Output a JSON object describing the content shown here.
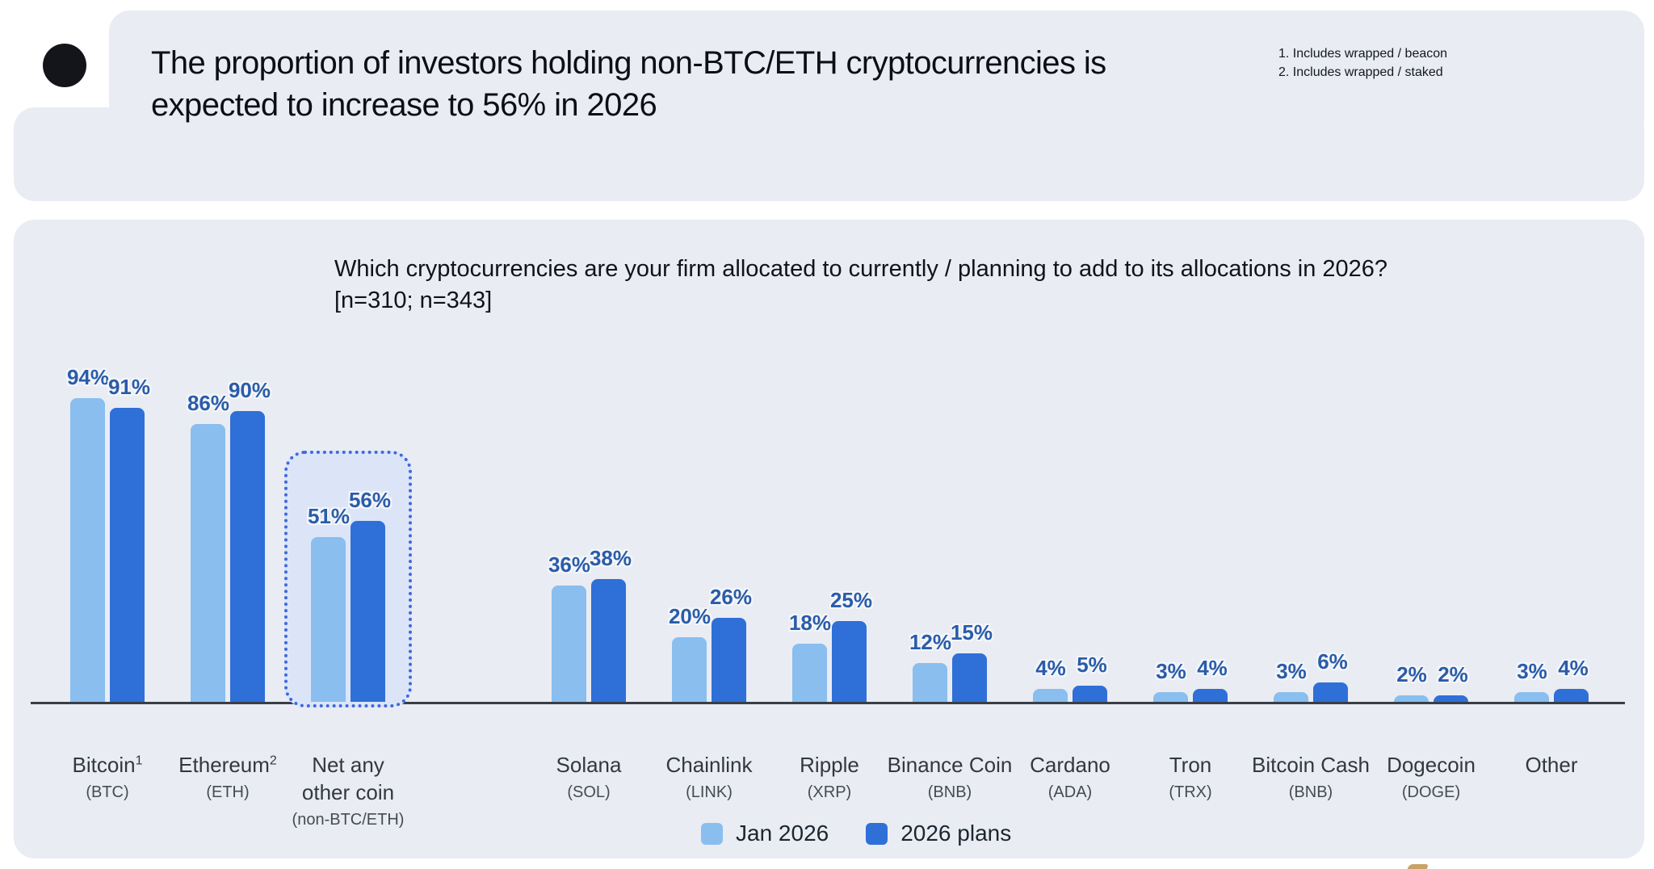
{
  "header": {
    "title_lines": [
      "The proportion of investors holding non-BTC/ETH cryptocurrencies is",
      "expected to increase to 56% in 2026"
    ],
    "footnotes": [
      "1. Includes wrapped / beacon",
      "2. Includes wrapped / staked"
    ]
  },
  "chart_data": {
    "type": "bar",
    "question_lines": [
      "Which cryptocurrencies are your firm allocated to currently / planning to add to its allocations in 2026?",
      "[n=310; n=343]"
    ],
    "unit": "%",
    "categories": [
      {
        "name_lines": [
          "Bitcoin"
        ],
        "sup": "1",
        "ticker": "(BTC)"
      },
      {
        "name_lines": [
          "Ethereum"
        ],
        "sup": "2",
        "ticker": "(ETH)"
      },
      {
        "name_lines": [
          "Net any",
          "other coin"
        ],
        "ticker": "(non-BTC/ETH)"
      },
      {
        "name_lines": [
          "Solana"
        ],
        "ticker": "(SOL)"
      },
      {
        "name_lines": [
          "Chainlink"
        ],
        "ticker": "(LINK)"
      },
      {
        "name_lines": [
          "Ripple"
        ],
        "ticker": "(XRP)"
      },
      {
        "name_lines": [
          "Binance Coin"
        ],
        "ticker": "(BNB)"
      },
      {
        "name_lines": [
          "Cardano"
        ],
        "ticker": "(ADA)"
      },
      {
        "name_lines": [
          "Tron"
        ],
        "ticker": "(TRX)"
      },
      {
        "name_lines": [
          "Bitcoin Cash"
        ],
        "ticker": "(BNB)"
      },
      {
        "name_lines": [
          "Dogecoin"
        ],
        "ticker": "(DOGE)"
      },
      {
        "name_lines": [
          "Other"
        ]
      }
    ],
    "series": [
      {
        "name": "Jan 2026",
        "color": "#89BEEF",
        "values": [
          94,
          86,
          51,
          36,
          20,
          18,
          12,
          4,
          3,
          3,
          2,
          3
        ]
      },
      {
        "name": "2026 plans",
        "color": "#2F6FD8",
        "values": [
          91,
          90,
          56,
          38,
          26,
          25,
          15,
          5,
          4,
          6,
          2,
          4
        ]
      }
    ],
    "value_label_format": "{v}%",
    "highlight": {
      "category_index": 2,
      "style": "dotted-rounded-box"
    },
    "legend_position": "bottom-center",
    "ylim": [
      0,
      100
    ],
    "grid": false,
    "layout_slots": [
      0,
      1,
      2,
      4,
      5,
      6,
      7,
      8,
      9,
      10,
      11,
      12
    ]
  },
  "colors": {
    "card_bg": "#E9ECF3",
    "value_label": "#2A5CA8",
    "axis": "#3A3E45",
    "highlight_border": "#3E68DC",
    "highlight_fill": "#DCE5F8",
    "logo": "#14151A"
  }
}
